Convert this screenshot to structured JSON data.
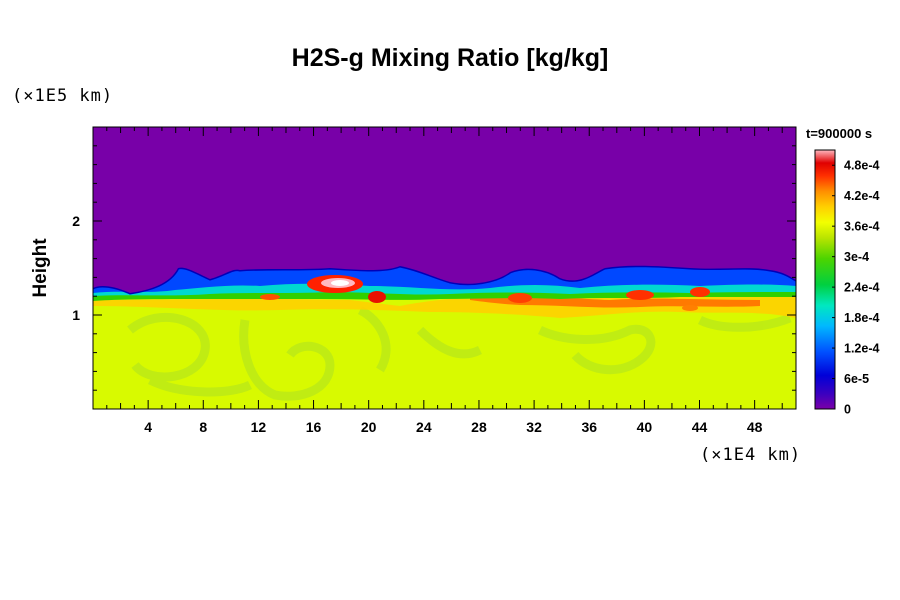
{
  "chart_data": {
    "type": "heatmap",
    "title": "H2S-g Mixing Ratio [kg/kg]",
    "ylabel": "Height",
    "x_unit": "(×1E4 km)",
    "y_unit": "(×1E5 km)",
    "time_label": "t=900000 s",
    "xlim": [
      0,
      51
    ],
    "ylim": [
      0,
      3
    ],
    "x_ticks": [
      4,
      8,
      12,
      16,
      20,
      24,
      28,
      32,
      36,
      40,
      44,
      48
    ],
    "y_ticks": [
      1,
      2
    ],
    "colorbar": {
      "min": 0,
      "max": 0.00051,
      "labels": [
        "4.8e-4",
        "4.2e-4",
        "3.6e-4",
        "3e-4",
        "2.4e-4",
        "1.8e-4",
        "1.2e-4",
        "6e-5",
        "0"
      ],
      "label_values": [
        0.00048,
        0.00042,
        0.00036,
        0.0003,
        0.00024,
        0.00018,
        0.00012,
        6e-05,
        0
      ]
    },
    "regions": [
      {
        "name": "upper",
        "y_range": [
          1.5,
          3.0
        ],
        "value": 0
      },
      {
        "name": "transition",
        "y_range": [
          1.2,
          1.5
        ],
        "value": 0.00012
      },
      {
        "name": "lower",
        "y_range": [
          0,
          1.15
        ],
        "value": 0.00033
      }
    ],
    "hotspots": [
      {
        "x": 17.5,
        "y": 1.3,
        "value": 0.00051
      },
      {
        "x": 20.5,
        "y": 1.15,
        "value": 0.00044
      },
      {
        "x": 31,
        "y": 1.2,
        "value": 0.0004
      },
      {
        "x": 40,
        "y": 1.25,
        "value": 0.00044
      },
      {
        "x": 43.5,
        "y": 1.25,
        "value": 0.00042
      }
    ]
  }
}
